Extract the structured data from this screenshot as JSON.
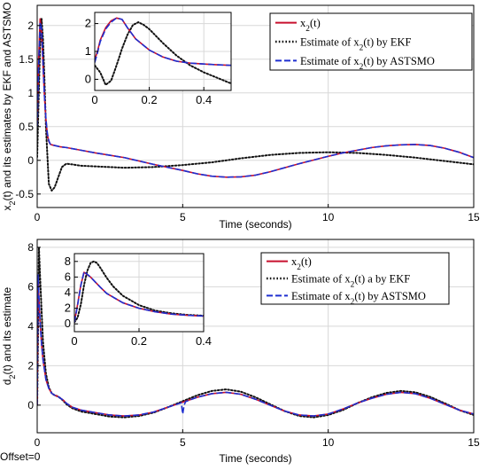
{
  "colors": {
    "true": "#c8102e",
    "ekf": "#111111",
    "astsmo": "#1f2fd0",
    "grid": "#d8d8d8"
  },
  "status": {
    "offset": "Offset=0"
  },
  "chart_data": [
    {
      "type": "line",
      "xlabel": "Time (seconds)",
      "ylabel": "x",
      "ylabel_sub": "2",
      "ylabel_rest": "(t) and its estimates by EKF and ASTSMO",
      "xlim": [
        0,
        15
      ],
      "ylim": [
        -0.7,
        2.3
      ],
      "xticks": [
        0,
        5,
        10,
        15
      ],
      "yticks": [
        -0.5,
        0,
        0.5,
        1,
        1.5,
        2
      ],
      "ytick_labels": [
        "-0.5",
        "0",
        "0.5",
        "1",
        "1.5",
        "2"
      ],
      "grid": true,
      "legend": {
        "placement": "top-right",
        "entries": [
          {
            "series": "true",
            "pre": "x",
            "sub": "2",
            "post": "(t)"
          },
          {
            "series": "ekf",
            "pre": "Estimate of x",
            "sub": "2",
            "post": "(t) by EKF"
          },
          {
            "series": "astsmo",
            "pre": "Estimate of x",
            "sub": "2",
            "post": "(t) by ASTSMO"
          }
        ]
      },
      "series": [
        {
          "key": "true",
          "style": "solid",
          "x": [
            0,
            0.05,
            0.1,
            0.15,
            0.2,
            0.25,
            0.3,
            0.35,
            0.4,
            0.45,
            0.5,
            0.6,
            0.8,
            1.0,
            1.5,
            2,
            3,
            4,
            5,
            5.5,
            6,
            6.5,
            7,
            7.5,
            8,
            9,
            10,
            10.5,
            11,
            11.5,
            12,
            12.5,
            13,
            13.5,
            14,
            14.5,
            15
          ],
          "y": [
            0.55,
            1.5,
            2.1,
            1.9,
            1.4,
            0.95,
            0.6,
            0.38,
            0.28,
            0.24,
            0.23,
            0.22,
            0.2,
            0.19,
            0.15,
            0.11,
            0.04,
            -0.06,
            -0.15,
            -0.2,
            -0.235,
            -0.25,
            -0.245,
            -0.22,
            -0.17,
            -0.05,
            0.06,
            0.11,
            0.15,
            0.19,
            0.215,
            0.23,
            0.235,
            0.22,
            0.18,
            0.12,
            0.04
          ]
        },
        {
          "key": "ekf",
          "style": "dotted",
          "x": [
            0,
            0.05,
            0.1,
            0.15,
            0.2,
            0.25,
            0.3,
            0.4,
            0.5,
            0.6,
            0.7,
            0.85,
            1.0,
            1.2,
            1.5,
            2,
            2.5,
            3,
            4,
            5,
            6,
            7,
            8,
            9,
            10,
            11,
            12,
            13,
            14,
            15
          ],
          "y": [
            0.05,
            0.9,
            1.7,
            2.1,
            1.8,
            1.2,
            0.5,
            -0.35,
            -0.45,
            -0.4,
            -0.28,
            -0.1,
            -0.05,
            -0.06,
            -0.08,
            -0.09,
            -0.1,
            -0.11,
            -0.1,
            -0.07,
            -0.03,
            0.03,
            0.08,
            0.11,
            0.12,
            0.11,
            0.08,
            0.04,
            -0.01,
            -0.06
          ]
        },
        {
          "key": "astsmo",
          "style": "dashed",
          "x": [
            0,
            0.05,
            0.1,
            0.15,
            0.2,
            0.25,
            0.3,
            0.35,
            0.4,
            0.45,
            0.5,
            0.6,
            0.8,
            1.0,
            1.5,
            2,
            3,
            4,
            5,
            5.5,
            6,
            6.5,
            7,
            7.5,
            8,
            9,
            10,
            10.5,
            11,
            11.5,
            12,
            12.5,
            13,
            13.5,
            14,
            14.5,
            15
          ],
          "y": [
            0.5,
            1.4,
            2.05,
            1.95,
            1.45,
            0.95,
            0.62,
            0.4,
            0.29,
            0.24,
            0.23,
            0.22,
            0.2,
            0.19,
            0.15,
            0.11,
            0.04,
            -0.06,
            -0.15,
            -0.2,
            -0.235,
            -0.25,
            -0.245,
            -0.22,
            -0.17,
            -0.05,
            0.06,
            0.11,
            0.15,
            0.19,
            0.215,
            0.23,
            0.235,
            0.22,
            0.18,
            0.12,
            0.04
          ]
        }
      ],
      "inset": {
        "xlim": [
          0,
          0.5
        ],
        "ylim": [
          -0.4,
          2.4
        ],
        "xticks": [
          0,
          0.2,
          0.4
        ],
        "xtick_labels": [
          "0",
          "0.2",
          "0.4"
        ],
        "yticks": [
          0,
          1,
          2
        ],
        "ytick_labels": [
          "0",
          "1",
          "2"
        ],
        "grid": true,
        "series": [
          {
            "key": "true",
            "style": "solid",
            "x": [
              0,
              0.01,
              0.02,
              0.04,
              0.06,
              0.08,
              0.1,
              0.12,
              0.15,
              0.2,
              0.25,
              0.3,
              0.35,
              0.4,
              0.45,
              0.5
            ],
            "y": [
              0.7,
              1.0,
              1.4,
              1.85,
              2.1,
              2.2,
              2.15,
              1.85,
              1.45,
              1.05,
              0.8,
              0.65,
              0.58,
              0.55,
              0.52,
              0.5
            ]
          },
          {
            "key": "ekf",
            "style": "dotted",
            "x": [
              0,
              0.02,
              0.04,
              0.06,
              0.08,
              0.1,
              0.12,
              0.14,
              0.16,
              0.18,
              0.2,
              0.22,
              0.25,
              0.3,
              0.35,
              0.4,
              0.45,
              0.5
            ],
            "y": [
              0.5,
              0.25,
              -0.2,
              -0.05,
              0.5,
              1.1,
              1.6,
              1.95,
              2.05,
              1.95,
              1.8,
              1.6,
              1.3,
              0.85,
              0.5,
              0.25,
              0.05,
              -0.15
            ]
          },
          {
            "key": "astsmo",
            "style": "dashed",
            "x": [
              0,
              0.01,
              0.02,
              0.04,
              0.06,
              0.08,
              0.1,
              0.12,
              0.15,
              0.2,
              0.25,
              0.3,
              0.35,
              0.4,
              0.45,
              0.5
            ],
            "y": [
              0.6,
              0.95,
              1.35,
              1.8,
              2.05,
              2.2,
              2.15,
              1.85,
              1.45,
              1.05,
              0.8,
              0.65,
              0.58,
              0.55,
              0.52,
              0.5
            ]
          }
        ]
      }
    },
    {
      "type": "line",
      "xlabel": "Time (seconds)",
      "ylabel": "d",
      "ylabel_sub": "2",
      "ylabel_rest": "(t) and its estimate",
      "xlim": [
        0,
        15
      ],
      "ylim": [
        -1.4,
        8.4
      ],
      "xticks": [
        0,
        5,
        10,
        15
      ],
      "yticks": [
        0,
        2,
        4,
        6,
        8
      ],
      "ytick_labels": [
        "0",
        "2",
        "4",
        "6",
        "8"
      ],
      "grid": true,
      "legend": {
        "placement": "top-right",
        "entries": [
          {
            "series": "true",
            "pre": "x",
            "sub": "2",
            "post": "(t)"
          },
          {
            "series": "ekf",
            "pre": "Estimate of x",
            "sub": "2",
            "post": "(t) a by EKF"
          },
          {
            "series": "astsmo",
            "pre": "Estimate of x",
            "sub": "2",
            "post": "(t) by ASTSMO"
          }
        ]
      },
      "series": [
        {
          "key": "true",
          "style": "solid",
          "x": [
            0,
            0.03,
            0.06,
            0.1,
            0.15,
            0.2,
            0.3,
            0.4,
            0.5,
            0.6,
            0.7,
            0.8,
            0.9,
            1.0,
            1.2,
            1.5,
            2,
            2.5,
            3,
            3.5,
            4,
            4.5,
            5,
            5.5,
            6,
            6.5,
            7,
            7.5,
            8,
            8.5,
            9,
            9.5,
            10,
            10.5,
            11,
            11.5,
            12,
            12.5,
            13,
            13.5,
            14,
            14.5,
            15
          ],
          "y": [
            0,
            6.5,
            5.4,
            4.2,
            3.1,
            2.3,
            1.3,
            0.85,
            0.6,
            0.5,
            0.45,
            0.35,
            0.25,
            0.1,
            -0.1,
            -0.25,
            -0.38,
            -0.5,
            -0.55,
            -0.5,
            -0.35,
            -0.1,
            0.15,
            0.4,
            0.58,
            0.65,
            0.55,
            0.3,
            0,
            -0.3,
            -0.5,
            -0.55,
            -0.45,
            -0.2,
            0.1,
            0.35,
            0.55,
            0.65,
            0.58,
            0.35,
            0.05,
            -0.25,
            -0.45
          ]
        },
        {
          "key": "ekf",
          "style": "dotted",
          "x": [
            0,
            0.03,
            0.06,
            0.1,
            0.15,
            0.2,
            0.3,
            0.4,
            0.5,
            0.6,
            0.7,
            0.8,
            0.9,
            1.0,
            1.2,
            1.5,
            2,
            2.5,
            3,
            3.5,
            4,
            4.5,
            5,
            5.5,
            6,
            6.5,
            7,
            7.5,
            8,
            8.5,
            9,
            9.5,
            10,
            10.5,
            11,
            11.5,
            12,
            12.5,
            13,
            13.5,
            14,
            14.5,
            15
          ],
          "y": [
            0,
            3.5,
            8.0,
            6.5,
            4.8,
            3.2,
            1.6,
            0.9,
            0.6,
            0.5,
            0.45,
            0.35,
            0.22,
            0.05,
            -0.15,
            -0.32,
            -0.45,
            -0.58,
            -0.62,
            -0.55,
            -0.38,
            -0.1,
            0.2,
            0.5,
            0.72,
            0.8,
            0.68,
            0.4,
            0.05,
            -0.3,
            -0.55,
            -0.62,
            -0.5,
            -0.25,
            0.1,
            0.4,
            0.62,
            0.72,
            0.65,
            0.42,
            0.1,
            -0.25,
            -0.5
          ]
        },
        {
          "key": "astsmo",
          "style": "dashed",
          "x": [
            0,
            0.03,
            0.06,
            0.1,
            0.15,
            0.2,
            0.3,
            0.4,
            0.5,
            0.6,
            0.7,
            0.8,
            0.9,
            1.0,
            1.2,
            1.5,
            2,
            2.5,
            3,
            3.5,
            4,
            4.5,
            4.95,
            5.0,
            5.05,
            5.1,
            5.5,
            6,
            6.5,
            7,
            7.5,
            8,
            8.5,
            9,
            9.5,
            10,
            10.5,
            11,
            11.5,
            12,
            12.5,
            13,
            13.5,
            14,
            14.5,
            15
          ],
          "y": [
            0,
            6.6,
            5.5,
            4.25,
            3.1,
            2.3,
            1.3,
            0.85,
            0.6,
            0.5,
            0.45,
            0.35,
            0.25,
            0.1,
            -0.1,
            -0.25,
            -0.38,
            -0.5,
            -0.55,
            -0.5,
            -0.35,
            -0.1,
            0.12,
            -0.45,
            0.0,
            0.18,
            0.4,
            0.58,
            0.65,
            0.55,
            0.3,
            0,
            -0.3,
            -0.5,
            -0.55,
            -0.45,
            -0.2,
            0.1,
            0.35,
            0.55,
            0.65,
            0.58,
            0.35,
            0.05,
            -0.25,
            -0.45
          ]
        }
      ],
      "inset": {
        "xlim": [
          0,
          0.4
        ],
        "ylim": [
          -1,
          9
        ],
        "xticks": [
          0,
          0.2,
          0.4
        ],
        "xtick_labels": [
          "0",
          "0.2",
          "0.4"
        ],
        "yticks": [
          0,
          2,
          4,
          6,
          8
        ],
        "ytick_labels": [
          "0",
          "2",
          "4",
          "6",
          "8"
        ],
        "grid": true,
        "series": [
          {
            "key": "true",
            "style": "solid",
            "x": [
              0,
              0.01,
              0.02,
              0.03,
              0.05,
              0.08,
              0.1,
              0.15,
              0.2,
              0.25,
              0.3,
              0.35,
              0.4
            ],
            "y": [
              0.2,
              2.5,
              5.0,
              6.6,
              6.0,
              4.7,
              3.9,
              2.7,
              2.0,
              1.55,
              1.25,
              1.1,
              1.0
            ]
          },
          {
            "key": "ekf",
            "style": "dotted",
            "x": [
              0,
              0.01,
              0.02,
              0.03,
              0.04,
              0.05,
              0.06,
              0.07,
              0.08,
              0.1,
              0.12,
              0.15,
              0.2,
              0.25,
              0.3,
              0.35,
              0.4
            ],
            "y": [
              0.2,
              0.8,
              2.5,
              5.0,
              6.8,
              7.8,
              8.0,
              7.8,
              7.2,
              5.9,
              4.8,
              3.6,
              2.4,
              1.7,
              1.35,
              1.15,
              1.05
            ]
          },
          {
            "key": "astsmo",
            "style": "dashed",
            "x": [
              0,
              0.01,
              0.02,
              0.03,
              0.05,
              0.08,
              0.1,
              0.15,
              0.2,
              0.25,
              0.3,
              0.35,
              0.4
            ],
            "y": [
              0.2,
              2.4,
              4.9,
              6.7,
              6.0,
              4.7,
              3.9,
              2.7,
              2.0,
              1.55,
              1.25,
              1.1,
              1.0
            ]
          }
        ]
      }
    }
  ]
}
